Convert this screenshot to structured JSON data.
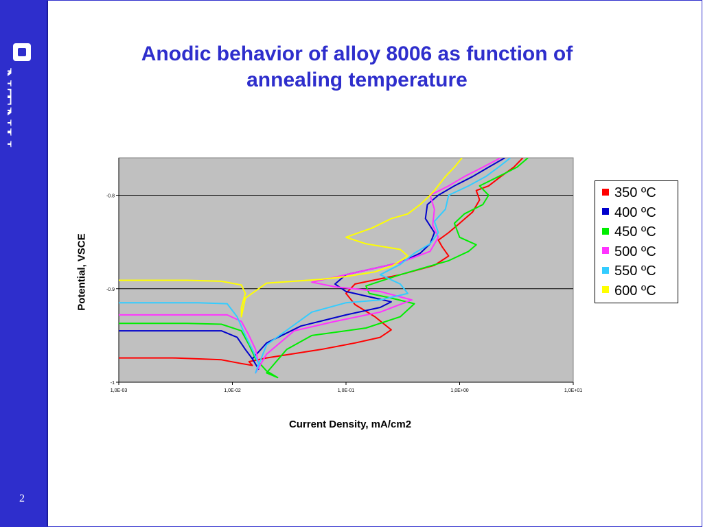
{
  "slide": {
    "logo_text": "NTNU",
    "page_number": "2",
    "title_line1": "Anodic behavior of alloy 8006 as function of",
    "title_line2": "annealing temperature"
  },
  "chart_data": {
    "type": "line",
    "title": "",
    "xlabel": "Current Density, mA/cm2",
    "ylabel": "Potential, VSCE",
    "xscale": "log",
    "xlim": [
      0.001,
      10
    ],
    "ylim": [
      -1.0,
      -0.76
    ],
    "xticks": [
      0.001,
      0.01,
      0.1,
      1,
      10
    ],
    "xtick_labels": [
      "1,0E-03",
      "1,0E-02",
      "1,0E-01",
      "1,0E+00",
      "1,0E+01"
    ],
    "yticks": [
      -1.0,
      -0.9,
      -0.8
    ],
    "ytick_labels": [
      "-1",
      "-0.9",
      "-0.8"
    ],
    "grid": "horizontal",
    "plot_background": "#C0C0C0",
    "legend_position": "right",
    "series": [
      {
        "name": "350 ºC",
        "color": "#ff0000",
        "points": [
          [
            0.001,
            -0.974
          ],
          [
            0.003,
            -0.974
          ],
          [
            0.008,
            -0.976
          ],
          [
            0.012,
            -0.98
          ],
          [
            0.015,
            -0.982
          ],
          [
            0.014,
            -0.978
          ],
          [
            0.02,
            -0.974
          ],
          [
            0.06,
            -0.965
          ],
          [
            0.12,
            -0.958
          ],
          [
            0.2,
            -0.952
          ],
          [
            0.25,
            -0.944
          ],
          [
            0.18,
            -0.93
          ],
          [
            0.12,
            -0.917
          ],
          [
            0.1,
            -0.905
          ],
          [
            0.12,
            -0.895
          ],
          [
            0.3,
            -0.885
          ],
          [
            0.6,
            -0.875
          ],
          [
            0.8,
            -0.865
          ],
          [
            0.7,
            -0.855
          ],
          [
            0.65,
            -0.848
          ],
          [
            0.8,
            -0.84
          ],
          [
            1.0,
            -0.83
          ],
          [
            1.3,
            -0.818
          ],
          [
            1.5,
            -0.805
          ],
          [
            1.4,
            -0.795
          ],
          [
            1.8,
            -0.79
          ],
          [
            2.3,
            -0.78
          ],
          [
            3.0,
            -0.77
          ],
          [
            3.6,
            -0.76
          ]
        ]
      },
      {
        "name": "400 ºC",
        "color": "#0000cc",
        "points": [
          [
            0.001,
            -0.945
          ],
          [
            0.004,
            -0.945
          ],
          [
            0.008,
            -0.945
          ],
          [
            0.011,
            -0.952
          ],
          [
            0.013,
            -0.965
          ],
          [
            0.015,
            -0.975
          ],
          [
            0.017,
            -0.986
          ],
          [
            0.015,
            -0.975
          ],
          [
            0.02,
            -0.958
          ],
          [
            0.04,
            -0.94
          ],
          [
            0.1,
            -0.928
          ],
          [
            0.2,
            -0.92
          ],
          [
            0.25,
            -0.914
          ],
          [
            0.18,
            -0.91
          ],
          [
            0.1,
            -0.903
          ],
          [
            0.08,
            -0.895
          ],
          [
            0.1,
            -0.885
          ],
          [
            0.3,
            -0.872
          ],
          [
            0.45,
            -0.862
          ],
          [
            0.55,
            -0.852
          ],
          [
            0.6,
            -0.84
          ],
          [
            0.5,
            -0.825
          ],
          [
            0.52,
            -0.81
          ],
          [
            0.65,
            -0.8
          ],
          [
            0.9,
            -0.79
          ],
          [
            1.3,
            -0.78
          ],
          [
            1.8,
            -0.77
          ],
          [
            2.5,
            -0.76
          ]
        ]
      },
      {
        "name": "450 ºC",
        "color": "#00ee00",
        "points": [
          [
            0.001,
            -0.937
          ],
          [
            0.004,
            -0.937
          ],
          [
            0.008,
            -0.938
          ],
          [
            0.012,
            -0.945
          ],
          [
            0.014,
            -0.96
          ],
          [
            0.016,
            -0.975
          ],
          [
            0.02,
            -0.988
          ],
          [
            0.025,
            -0.995
          ],
          [
            0.02,
            -0.99
          ],
          [
            0.03,
            -0.965
          ],
          [
            0.05,
            -0.95
          ],
          [
            0.15,
            -0.942
          ],
          [
            0.3,
            -0.93
          ],
          [
            0.4,
            -0.916
          ],
          [
            0.25,
            -0.91
          ],
          [
            0.16,
            -0.905
          ],
          [
            0.15,
            -0.897
          ],
          [
            0.3,
            -0.885
          ],
          [
            0.8,
            -0.87
          ],
          [
            1.2,
            -0.86
          ],
          [
            1.4,
            -0.853
          ],
          [
            1.0,
            -0.845
          ],
          [
            0.9,
            -0.83
          ],
          [
            1.1,
            -0.82
          ],
          [
            1.6,
            -0.81
          ],
          [
            1.8,
            -0.8
          ],
          [
            1.5,
            -0.79
          ],
          [
            2.2,
            -0.78
          ],
          [
            3.2,
            -0.77
          ],
          [
            4.0,
            -0.76
          ]
        ]
      },
      {
        "name": "500 ºC",
        "color": "#ff33ff",
        "points": [
          [
            0.001,
            -0.928
          ],
          [
            0.004,
            -0.928
          ],
          [
            0.009,
            -0.928
          ],
          [
            0.012,
            -0.935
          ],
          [
            0.014,
            -0.95
          ],
          [
            0.016,
            -0.965
          ],
          [
            0.017,
            -0.98
          ],
          [
            0.016,
            -0.99
          ],
          [
            0.02,
            -0.97
          ],
          [
            0.035,
            -0.945
          ],
          [
            0.08,
            -0.935
          ],
          [
            0.2,
            -0.925
          ],
          [
            0.38,
            -0.912
          ],
          [
            0.2,
            -0.903
          ],
          [
            0.08,
            -0.898
          ],
          [
            0.05,
            -0.893
          ],
          [
            0.1,
            -0.885
          ],
          [
            0.3,
            -0.872
          ],
          [
            0.55,
            -0.86
          ],
          [
            0.65,
            -0.845
          ],
          [
            0.58,
            -0.832
          ],
          [
            0.6,
            -0.815
          ],
          [
            0.55,
            -0.8
          ],
          [
            0.8,
            -0.79
          ],
          [
            1.1,
            -0.78
          ],
          [
            1.6,
            -0.77
          ],
          [
            2.3,
            -0.76
          ]
        ]
      },
      {
        "name": "550 ºC",
        "color": "#33ccff",
        "points": [
          [
            0.001,
            -0.915
          ],
          [
            0.005,
            -0.915
          ],
          [
            0.009,
            -0.916
          ],
          [
            0.011,
            -0.93
          ],
          [
            0.013,
            -0.95
          ],
          [
            0.015,
            -0.965
          ],
          [
            0.017,
            -0.98
          ],
          [
            0.016,
            -0.99
          ],
          [
            0.02,
            -0.96
          ],
          [
            0.05,
            -0.925
          ],
          [
            0.1,
            -0.915
          ],
          [
            0.2,
            -0.912
          ],
          [
            0.35,
            -0.905
          ],
          [
            0.3,
            -0.895
          ],
          [
            0.2,
            -0.885
          ],
          [
            0.3,
            -0.874
          ],
          [
            0.4,
            -0.862
          ],
          [
            0.55,
            -0.852
          ],
          [
            0.65,
            -0.84
          ],
          [
            0.6,
            -0.828
          ],
          [
            0.75,
            -0.815
          ],
          [
            0.8,
            -0.8
          ],
          [
            1.2,
            -0.79
          ],
          [
            1.7,
            -0.78
          ],
          [
            2.2,
            -0.77
          ],
          [
            2.8,
            -0.76
          ]
        ]
      },
      {
        "name": "600 ºC",
        "color": "#ffff00",
        "points": [
          [
            0.001,
            -0.891
          ],
          [
            0.004,
            -0.891
          ],
          [
            0.008,
            -0.892
          ],
          [
            0.012,
            -0.896
          ],
          [
            0.013,
            -0.905
          ],
          [
            0.012,
            -0.92
          ],
          [
            0.012,
            -0.93
          ],
          [
            0.013,
            -0.91
          ],
          [
            0.02,
            -0.894
          ],
          [
            0.06,
            -0.89
          ],
          [
            0.1,
            -0.887
          ],
          [
            0.18,
            -0.882
          ],
          [
            0.26,
            -0.875
          ],
          [
            0.35,
            -0.865
          ],
          [
            0.3,
            -0.858
          ],
          [
            0.15,
            -0.852
          ],
          [
            0.1,
            -0.845
          ],
          [
            0.17,
            -0.835
          ],
          [
            0.25,
            -0.825
          ],
          [
            0.35,
            -0.82
          ],
          [
            0.45,
            -0.81
          ],
          [
            0.55,
            -0.8
          ],
          [
            0.6,
            -0.795
          ],
          [
            0.75,
            -0.78
          ],
          [
            0.9,
            -0.77
          ],
          [
            1.05,
            -0.76
          ]
        ]
      }
    ]
  }
}
